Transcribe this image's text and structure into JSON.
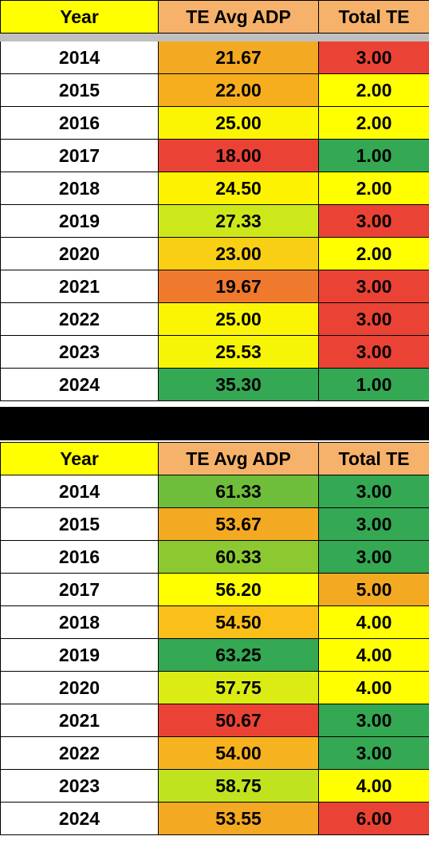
{
  "tables": [
    {
      "headers": [
        "Year",
        "TE Avg ADP",
        "Total TE"
      ],
      "rows": [
        {
          "year": "2014",
          "adp": "21.67",
          "total": "3.00",
          "adp_color": "#f4a922",
          "total_color": "#ea4335"
        },
        {
          "year": "2015",
          "adp": "22.00",
          "total": "2.00",
          "adp_color": "#f6ae1f",
          "total_color": "#ffff00"
        },
        {
          "year": "2016",
          "adp": "25.00",
          "total": "2.00",
          "adp_color": "#fbf504",
          "total_color": "#ffff00"
        },
        {
          "year": "2017",
          "adp": "18.00",
          "total": "1.00",
          "adp_color": "#ea4335",
          "total_color": "#34a853"
        },
        {
          "year": "2018",
          "adp": "24.50",
          "total": "2.00",
          "adp_color": "#fdf200",
          "total_color": "#ffff00"
        },
        {
          "year": "2019",
          "adp": "27.33",
          "total": "3.00",
          "adp_color": "#cde81a",
          "total_color": "#ea4335"
        },
        {
          "year": "2020",
          "adp": "23.00",
          "total": "2.00",
          "adp_color": "#f9cf15",
          "total_color": "#ffff00"
        },
        {
          "year": "2021",
          "adp": "19.67",
          "total": "3.00",
          "adp_color": "#ef7a2e",
          "total_color": "#ea4335"
        },
        {
          "year": "2022",
          "adp": "25.00",
          "total": "3.00",
          "adp_color": "#fbf504",
          "total_color": "#ea4335"
        },
        {
          "year": "2023",
          "adp": "25.53",
          "total": "3.00",
          "adp_color": "#f6f507",
          "total_color": "#ea4335"
        },
        {
          "year": "2024",
          "adp": "35.30",
          "total": "1.00",
          "adp_color": "#34a853",
          "total_color": "#34a853"
        }
      ]
    },
    {
      "headers": [
        "Year",
        "TE Avg ADP",
        "Total TE"
      ],
      "rows": [
        {
          "year": "2014",
          "adp": "61.33",
          "total": "3.00",
          "adp_color": "#6fbe3b",
          "total_color": "#34a853"
        },
        {
          "year": "2015",
          "adp": "53.67",
          "total": "3.00",
          "adp_color": "#f4a922",
          "total_color": "#34a853"
        },
        {
          "year": "2016",
          "adp": "60.33",
          "total": "3.00",
          "adp_color": "#8cc930",
          "total_color": "#34a853"
        },
        {
          "year": "2017",
          "adp": "56.20",
          "total": "5.00",
          "adp_color": "#ffff00",
          "total_color": "#f4a922"
        },
        {
          "year": "2018",
          "adp": "54.50",
          "total": "4.00",
          "adp_color": "#fbbf1a",
          "total_color": "#ffff00"
        },
        {
          "year": "2019",
          "adp": "63.25",
          "total": "4.00",
          "adp_color": "#34a853",
          "total_color": "#ffff00"
        },
        {
          "year": "2020",
          "adp": "57.75",
          "total": "4.00",
          "adp_color": "#daec14",
          "total_color": "#ffff00"
        },
        {
          "year": "2021",
          "adp": "50.67",
          "total": "3.00",
          "adp_color": "#ea4335",
          "total_color": "#34a853"
        },
        {
          "year": "2022",
          "adp": "54.00",
          "total": "3.00",
          "adp_color": "#f6b21f",
          "total_color": "#34a853"
        },
        {
          "year": "2023",
          "adp": "58.75",
          "total": "4.00",
          "adp_color": "#bfe31f",
          "total_color": "#ffff00"
        },
        {
          "year": "2024",
          "adp": "53.55",
          "total": "6.00",
          "adp_color": "#f4a922",
          "total_color": "#ea4335"
        }
      ]
    }
  ]
}
